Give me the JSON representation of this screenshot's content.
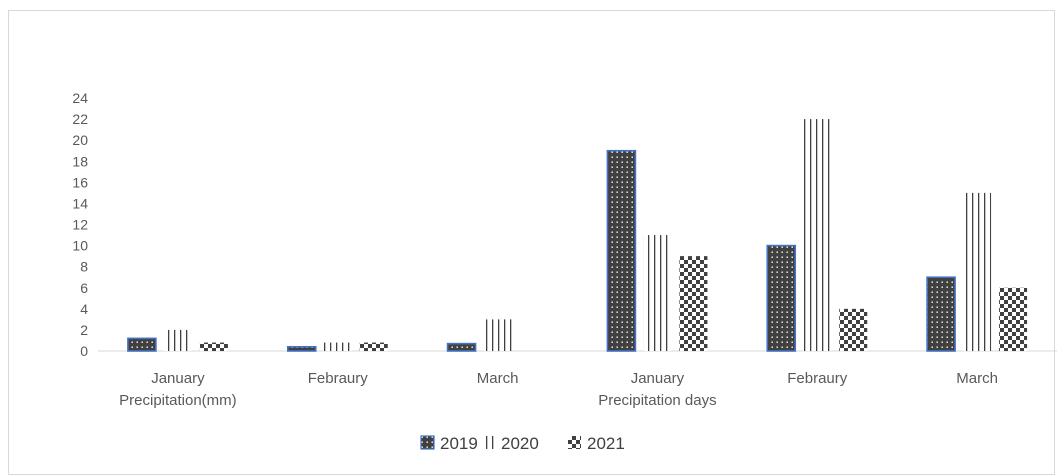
{
  "chart_data": {
    "type": "bar",
    "title": "",
    "xlabel": "",
    "ylabel": "",
    "ylim": [
      0,
      24
    ],
    "yticks": [
      0,
      2,
      4,
      6,
      8,
      10,
      12,
      14,
      16,
      18,
      20,
      22,
      24
    ],
    "grid": false,
    "legend_position": "bottom",
    "categories": [
      {
        "line1": "January",
        "line2": "Precipitation(mm)"
      },
      {
        "line1": "Febraury",
        "line2": ""
      },
      {
        "line1": "March",
        "line2": ""
      },
      {
        "line1": "January",
        "line2": "Precipitation days"
      },
      {
        "line1": "Febraury",
        "line2": ""
      },
      {
        "line1": "March",
        "line2": ""
      }
    ],
    "series": [
      {
        "name": "2019",
        "pattern": "dotted-dark",
        "values": [
          1.2,
          0.4,
          0.7,
          19,
          10,
          7
        ]
      },
      {
        "name": "2020",
        "pattern": "vertical-lines",
        "values": [
          2,
          0.8,
          3,
          11,
          22,
          15
        ]
      },
      {
        "name": "2021",
        "pattern": "checkered",
        "values": [
          0.8,
          0.8,
          0,
          9,
          4,
          6
        ]
      }
    ],
    "colors": {
      "dark": "#404040",
      "border": "#4472c4",
      "axis": "#d9d9d9",
      "text": "#595959"
    }
  }
}
